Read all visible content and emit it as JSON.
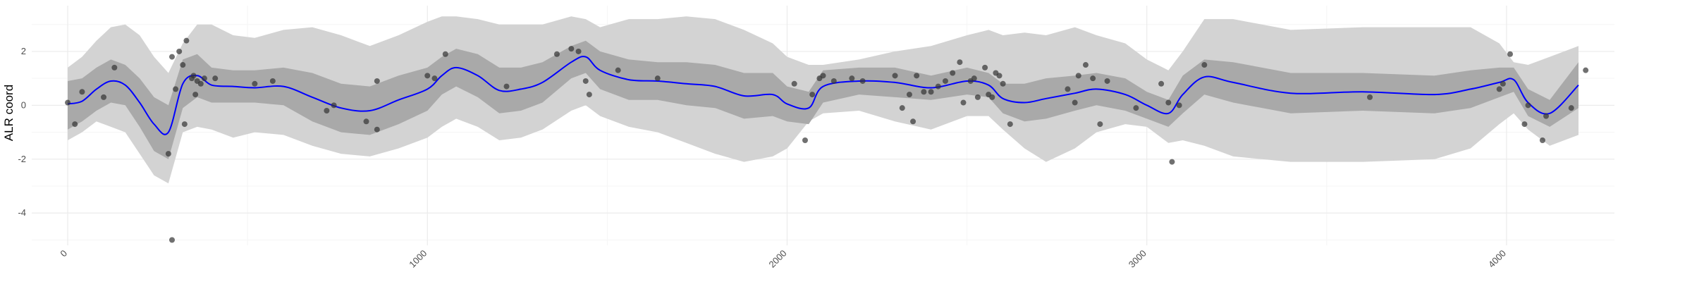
{
  "chart_data": {
    "type": "line",
    "title": "",
    "xlabel": "",
    "ylabel": "ALR coord",
    "xlim": [
      -100,
      4300
    ],
    "ylim": [
      -5.2,
      3.7
    ],
    "x_ticks": [
      0,
      1000,
      2000,
      3000,
      4000
    ],
    "x_tick_labels": [
      "0",
      "1000",
      "2000",
      "3000",
      "4000"
    ],
    "y_ticks": [
      -4,
      -2,
      0,
      2
    ],
    "y_tick_labels": [
      "-4",
      "-2",
      "0",
      "2"
    ],
    "grid": true,
    "legend": "none",
    "colors": {
      "mean_line": "#0000ff",
      "inner_band": "#a9a9a9",
      "outer_band": "#d3d3d3",
      "points": "#333333",
      "grid_major": "#ebebeb",
      "grid_minor": "#f5f5f5"
    },
    "mean_curve": {
      "x": [
        0,
        40,
        80,
        120,
        160,
        200,
        240,
        280,
        320,
        360,
        400,
        460,
        520,
        600,
        680,
        760,
        840,
        920,
        1000,
        1040,
        1080,
        1140,
        1200,
        1260,
        1320,
        1400,
        1440,
        1480,
        1560,
        1640,
        1720,
        1800,
        1880,
        1960,
        2000,
        2060,
        2100,
        2200,
        2300,
        2400,
        2500,
        2560,
        2600,
        2660,
        2720,
        2800,
        2860,
        2940,
        3000,
        3060,
        3100,
        3160,
        3240,
        3400,
        3600,
        3800,
        3900,
        3980,
        4020,
        4060,
        4120,
        4200
      ],
      "y": [
        0.05,
        0.15,
        0.6,
        0.9,
        0.75,
        0.1,
        -0.7,
        -1.0,
        0.8,
        1.1,
        0.75,
        0.7,
        0.65,
        0.7,
        0.3,
        -0.1,
        -0.2,
        0.2,
        0.6,
        1.1,
        1.4,
        1.1,
        0.55,
        0.6,
        0.85,
        1.6,
        1.8,
        1.3,
        0.95,
        0.9,
        0.8,
        0.7,
        0.35,
        0.4,
        0.05,
        -0.1,
        0.7,
        0.9,
        0.85,
        0.65,
        0.9,
        0.75,
        0.25,
        0.1,
        0.25,
        0.45,
        0.6,
        0.4,
        0.0,
        -0.3,
        0.4,
        1.05,
        0.85,
        0.45,
        0.5,
        0.4,
        0.6,
        0.85,
        0.95,
        0.1,
        -0.3,
        0.75
      ]
    },
    "inner_band": {
      "lower": [
        -0.9,
        -0.6,
        -0.2,
        0.1,
        0.0,
        -0.8,
        -1.7,
        -2.0,
        -0.1,
        0.3,
        0.1,
        0.1,
        0.1,
        0.0,
        -0.6,
        -1.0,
        -1.1,
        -0.7,
        -0.2,
        0.4,
        0.7,
        0.3,
        -0.3,
        -0.2,
        0.1,
        1.0,
        1.2,
        0.6,
        0.2,
        0.2,
        0.0,
        -0.1,
        -0.5,
        -0.4,
        -0.6,
        -0.7,
        0.1,
        0.4,
        0.3,
        0.2,
        0.4,
        0.3,
        -0.3,
        -0.6,
        -0.5,
        -0.2,
        0.0,
        -0.2,
        -0.5,
        -0.8,
        -0.3,
        0.4,
        0.1,
        -0.3,
        -0.2,
        -0.3,
        -0.1,
        0.3,
        0.5,
        -0.4,
        -0.8,
        -0.1
      ],
      "upper": [
        0.9,
        1.0,
        1.4,
        1.7,
        1.5,
        1.0,
        0.3,
        0.0,
        1.7,
        1.9,
        1.4,
        1.3,
        1.3,
        1.4,
        1.2,
        0.8,
        0.7,
        1.1,
        1.4,
        1.8,
        2.1,
        1.9,
        1.4,
        1.4,
        1.6,
        2.2,
        2.4,
        2.0,
        1.7,
        1.6,
        1.6,
        1.5,
        1.2,
        1.2,
        0.7,
        0.5,
        1.3,
        1.4,
        1.4,
        1.1,
        1.4,
        1.2,
        0.8,
        0.8,
        1.0,
        1.1,
        1.2,
        1.0,
        0.5,
        0.2,
        1.1,
        1.7,
        1.6,
        1.2,
        1.2,
        1.1,
        1.3,
        1.4,
        1.4,
        0.6,
        0.2,
        1.6
      ]
    },
    "outer_band": {
      "lower": [
        -1.3,
        -1.0,
        -0.6,
        -0.8,
        -1.0,
        -1.8,
        -2.6,
        -2.9,
        -1.0,
        -0.8,
        -0.9,
        -1.2,
        -1.0,
        -1.1,
        -1.5,
        -1.8,
        -1.9,
        -1.6,
        -1.2,
        -0.8,
        -0.5,
        -0.8,
        -1.3,
        -1.2,
        -0.9,
        -0.2,
        0.0,
        -0.4,
        -0.8,
        -1.0,
        -1.4,
        -1.8,
        -2.1,
        -1.9,
        -1.6,
        -0.6,
        -0.3,
        -0.2,
        -0.6,
        -0.9,
        -0.4,
        -0.4,
        -0.9,
        -1.6,
        -2.1,
        -1.6,
        -1.0,
        -0.7,
        -0.8,
        -1.4,
        -1.3,
        -1.5,
        -1.9,
        -2.1,
        -2.1,
        -2.0,
        -1.6,
        -0.7,
        -0.3,
        -0.9,
        -1.5,
        -1.1
      ],
      "upper": [
        1.4,
        1.8,
        2.4,
        2.9,
        3.0,
        2.6,
        1.8,
        1.2,
        2.3,
        3.0,
        3.0,
        2.6,
        2.5,
        2.8,
        2.9,
        2.6,
        2.2,
        2.6,
        3.1,
        3.3,
        3.3,
        3.2,
        3.0,
        3.0,
        3.0,
        3.3,
        3.2,
        2.9,
        3.2,
        3.2,
        3.3,
        3.2,
        2.8,
        2.3,
        1.8,
        1.5,
        1.5,
        1.7,
        2.0,
        2.2,
        2.6,
        2.8,
        2.6,
        2.7,
        2.6,
        2.9,
        2.6,
        2.3,
        1.7,
        1.3,
        2.0,
        3.2,
        3.2,
        2.8,
        2.9,
        2.9,
        2.9,
        2.3,
        1.6,
        1.5,
        1.8,
        2.2
      ]
    },
    "points": [
      {
        "x": 0,
        "y": 0.1
      },
      {
        "x": 20,
        "y": -0.7
      },
      {
        "x": 40,
        "y": 0.5
      },
      {
        "x": 100,
        "y": 0.3
      },
      {
        "x": 130,
        "y": 1.4
      },
      {
        "x": 280,
        "y": -1.8
      },
      {
        "x": 290,
        "y": -5.0
      },
      {
        "x": 290,
        "y": 1.8
      },
      {
        "x": 300,
        "y": 0.6
      },
      {
        "x": 310,
        "y": 2.0
      },
      {
        "x": 320,
        "y": 1.5
      },
      {
        "x": 325,
        "y": -0.7
      },
      {
        "x": 330,
        "y": 2.4
      },
      {
        "x": 345,
        "y": 1.0
      },
      {
        "x": 350,
        "y": 1.1
      },
      {
        "x": 355,
        "y": 0.4
      },
      {
        "x": 360,
        "y": 0.9
      },
      {
        "x": 370,
        "y": 0.8
      },
      {
        "x": 380,
        "y": 1.0
      },
      {
        "x": 410,
        "y": 1.0
      },
      {
        "x": 520,
        "y": 0.8
      },
      {
        "x": 570,
        "y": 0.9
      },
      {
        "x": 720,
        "y": -0.2
      },
      {
        "x": 740,
        "y": 0.0
      },
      {
        "x": 830,
        "y": -0.6
      },
      {
        "x": 860,
        "y": -0.9
      },
      {
        "x": 860,
        "y": 0.9
      },
      {
        "x": 1000,
        "y": 1.1
      },
      {
        "x": 1020,
        "y": 1.0
      },
      {
        "x": 1050,
        "y": 1.9
      },
      {
        "x": 1220,
        "y": 0.7
      },
      {
        "x": 1360,
        "y": 1.9
      },
      {
        "x": 1400,
        "y": 2.1
      },
      {
        "x": 1420,
        "y": 2.0
      },
      {
        "x": 1440,
        "y": 0.9
      },
      {
        "x": 1450,
        "y": 0.4
      },
      {
        "x": 1530,
        "y": 1.3
      },
      {
        "x": 1640,
        "y": 1.0
      },
      {
        "x": 2020,
        "y": 0.8
      },
      {
        "x": 2050,
        "y": -1.3
      },
      {
        "x": 2070,
        "y": 0.4
      },
      {
        "x": 2090,
        "y": 1.0
      },
      {
        "x": 2100,
        "y": 1.1
      },
      {
        "x": 2130,
        "y": 0.9
      },
      {
        "x": 2180,
        "y": 1.0
      },
      {
        "x": 2210,
        "y": 0.9
      },
      {
        "x": 2300,
        "y": 1.1
      },
      {
        "x": 2320,
        "y": -0.1
      },
      {
        "x": 2340,
        "y": 0.4
      },
      {
        "x": 2350,
        "y": -0.6
      },
      {
        "x": 2360,
        "y": 1.1
      },
      {
        "x": 2380,
        "y": 0.5
      },
      {
        "x": 2400,
        "y": 0.5
      },
      {
        "x": 2420,
        "y": 0.7
      },
      {
        "x": 2440,
        "y": 0.9
      },
      {
        "x": 2460,
        "y": 1.2
      },
      {
        "x": 2480,
        "y": 1.6
      },
      {
        "x": 2490,
        "y": 0.1
      },
      {
        "x": 2510,
        "y": 0.9
      },
      {
        "x": 2520,
        "y": 1.0
      },
      {
        "x": 2530,
        "y": 0.3
      },
      {
        "x": 2550,
        "y": 1.4
      },
      {
        "x": 2560,
        "y": 0.4
      },
      {
        "x": 2570,
        "y": 0.3
      },
      {
        "x": 2580,
        "y": 1.2
      },
      {
        "x": 2590,
        "y": 1.1
      },
      {
        "x": 2600,
        "y": 0.8
      },
      {
        "x": 2620,
        "y": -0.7
      },
      {
        "x": 2780,
        "y": 0.6
      },
      {
        "x": 2800,
        "y": 0.1
      },
      {
        "x": 2810,
        "y": 1.1
      },
      {
        "x": 2830,
        "y": 1.5
      },
      {
        "x": 2850,
        "y": 1.0
      },
      {
        "x": 2870,
        "y": -0.7
      },
      {
        "x": 2890,
        "y": 0.9
      },
      {
        "x": 2970,
        "y": -0.1
      },
      {
        "x": 3040,
        "y": 0.8
      },
      {
        "x": 3060,
        "y": 0.1
      },
      {
        "x": 3070,
        "y": -2.1
      },
      {
        "x": 3090,
        "y": 0.0
      },
      {
        "x": 3160,
        "y": 1.5
      },
      {
        "x": 3620,
        "y": 0.3
      },
      {
        "x": 3980,
        "y": 0.6
      },
      {
        "x": 3990,
        "y": 0.8
      },
      {
        "x": 4010,
        "y": 1.9
      },
      {
        "x": 4050,
        "y": -0.7
      },
      {
        "x": 4060,
        "y": 0.0
      },
      {
        "x": 4100,
        "y": -1.3
      },
      {
        "x": 4110,
        "y": -0.4
      },
      {
        "x": 4180,
        "y": -0.1
      },
      {
        "x": 4220,
        "y": 1.3
      }
    ]
  }
}
